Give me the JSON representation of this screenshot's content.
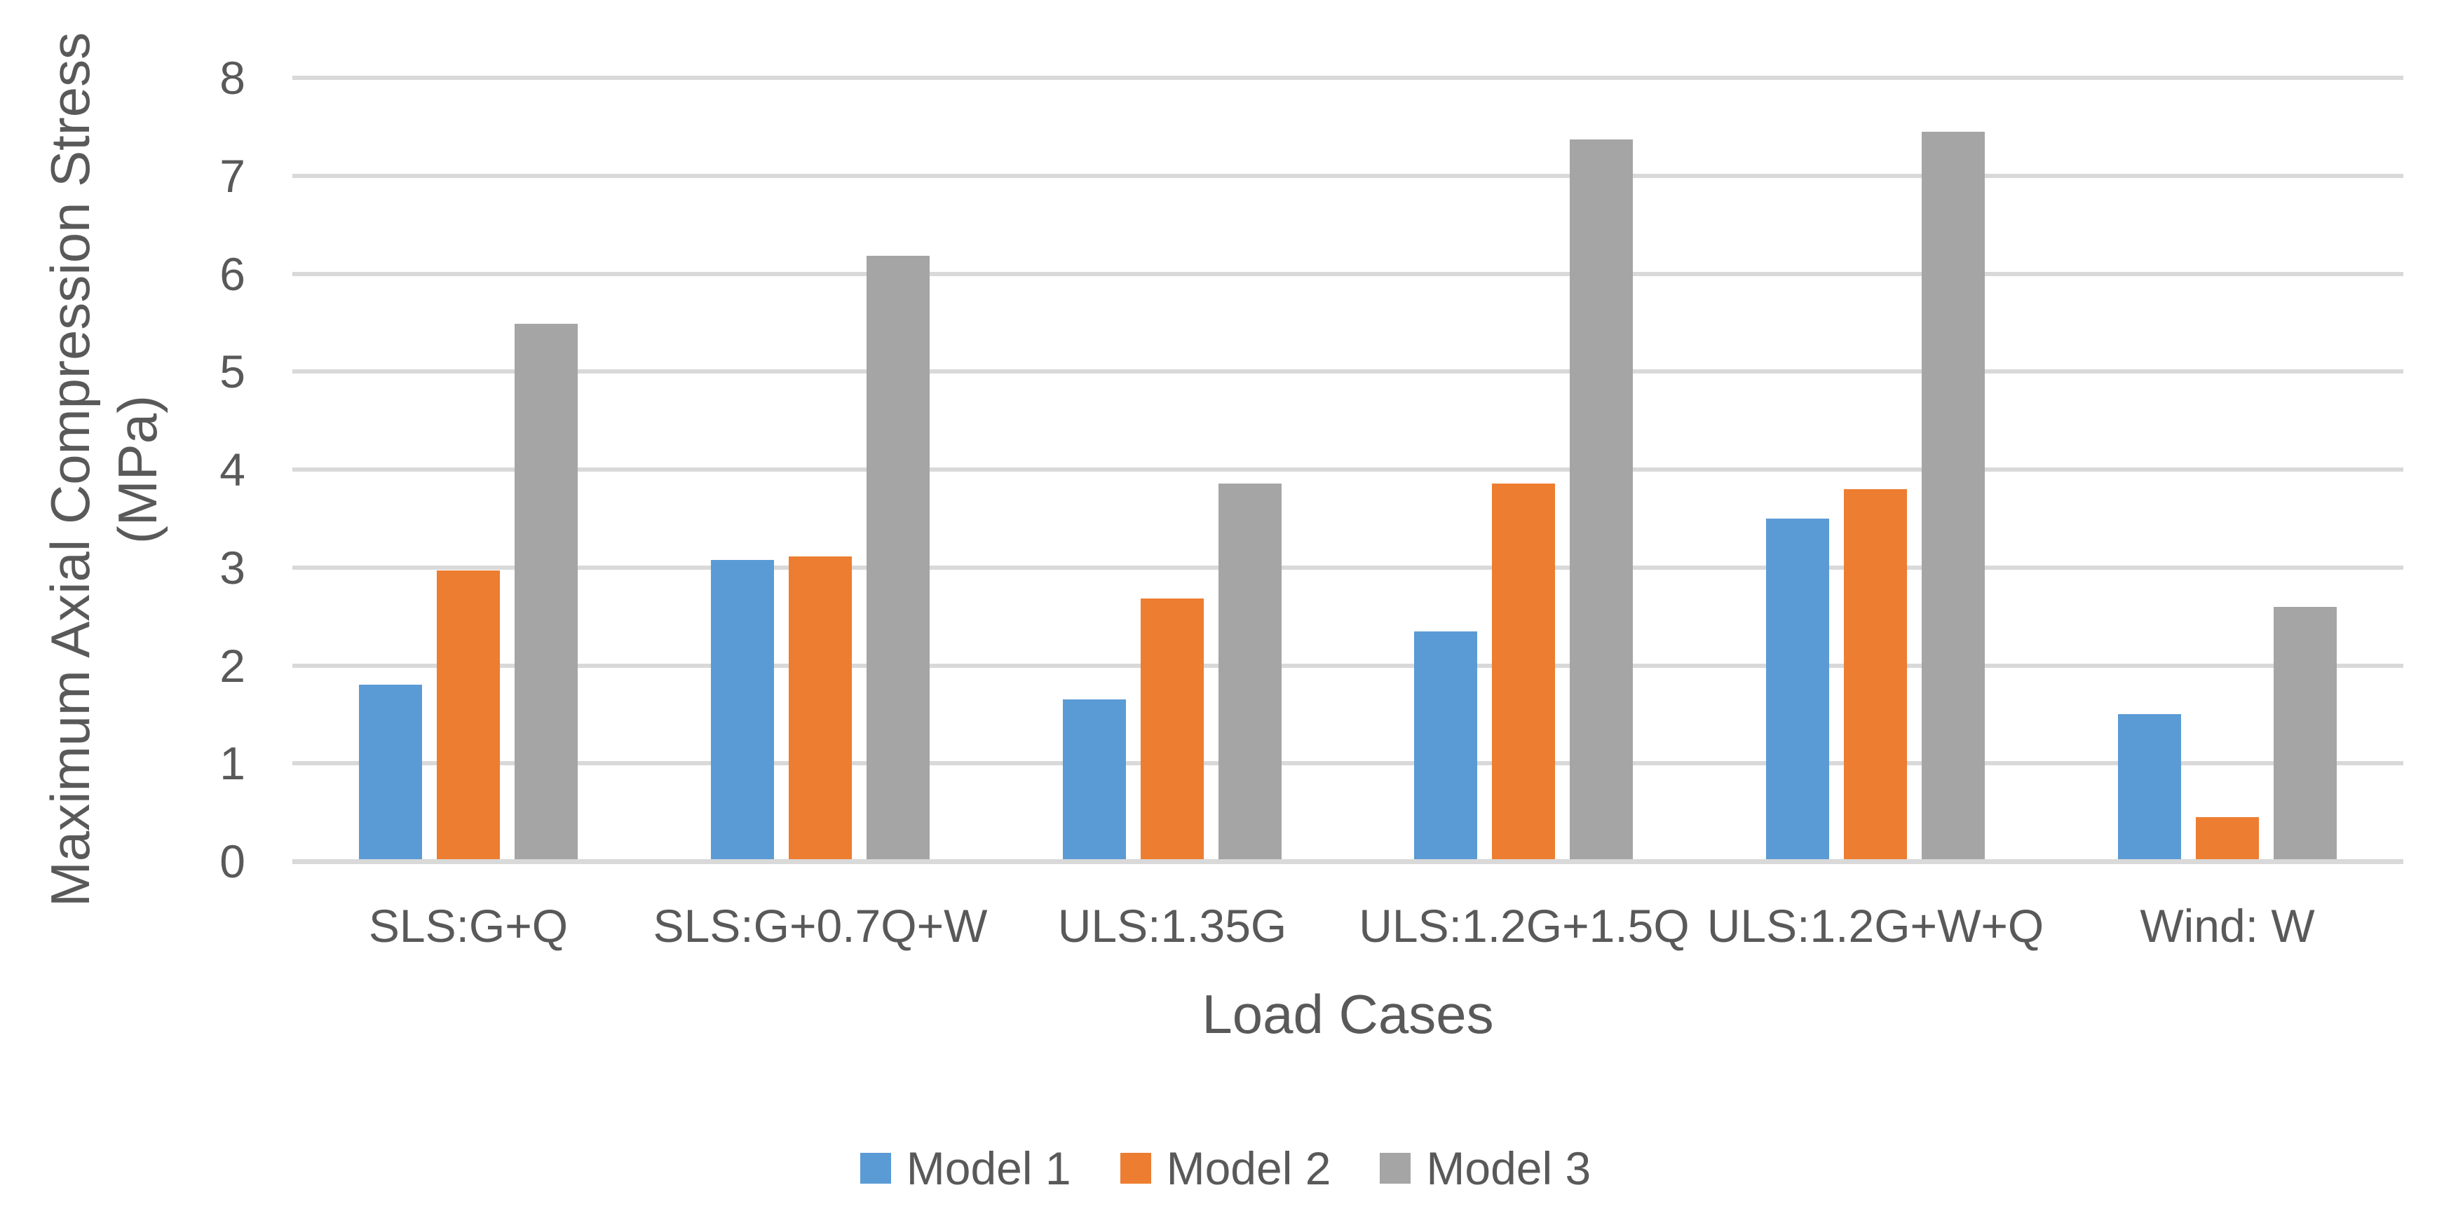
{
  "chart_data": {
    "type": "bar",
    "categories": [
      "SLS:G+Q",
      "SLS:G+0.7Q+W",
      "ULS:1.35G",
      "ULS:1.2G+1.5Q",
      "ULS:1.2G+W+Q",
      "Wind: W"
    ],
    "series": [
      {
        "name": "Model 1",
        "color": "#5B9BD5",
        "values": [
          1.8,
          3.08,
          1.65,
          2.35,
          3.5,
          1.5
        ]
      },
      {
        "name": "Model 2",
        "color": "#ED7D31",
        "values": [
          2.97,
          3.11,
          2.68,
          3.86,
          3.8,
          0.45
        ]
      },
      {
        "name": "Model 3",
        "color": "#A5A5A5",
        "values": [
          5.49,
          6.18,
          3.86,
          7.37,
          7.45,
          2.6
        ]
      }
    ],
    "xlabel": "Load Cases",
    "ylabel_line1": "Maximum Axial Compression Stress",
    "ylabel_line2": "(MPa)",
    "ylim": [
      0,
      8
    ],
    "yticks": [
      0,
      1,
      2,
      3,
      4,
      5,
      6,
      7,
      8
    ],
    "grid": "horizontal",
    "legend_position": "bottom",
    "colors": {
      "gridline": "#D9D9D9",
      "axis_line": "#D9D9D9",
      "text": "#595959",
      "background": "#FFFFFF"
    }
  }
}
